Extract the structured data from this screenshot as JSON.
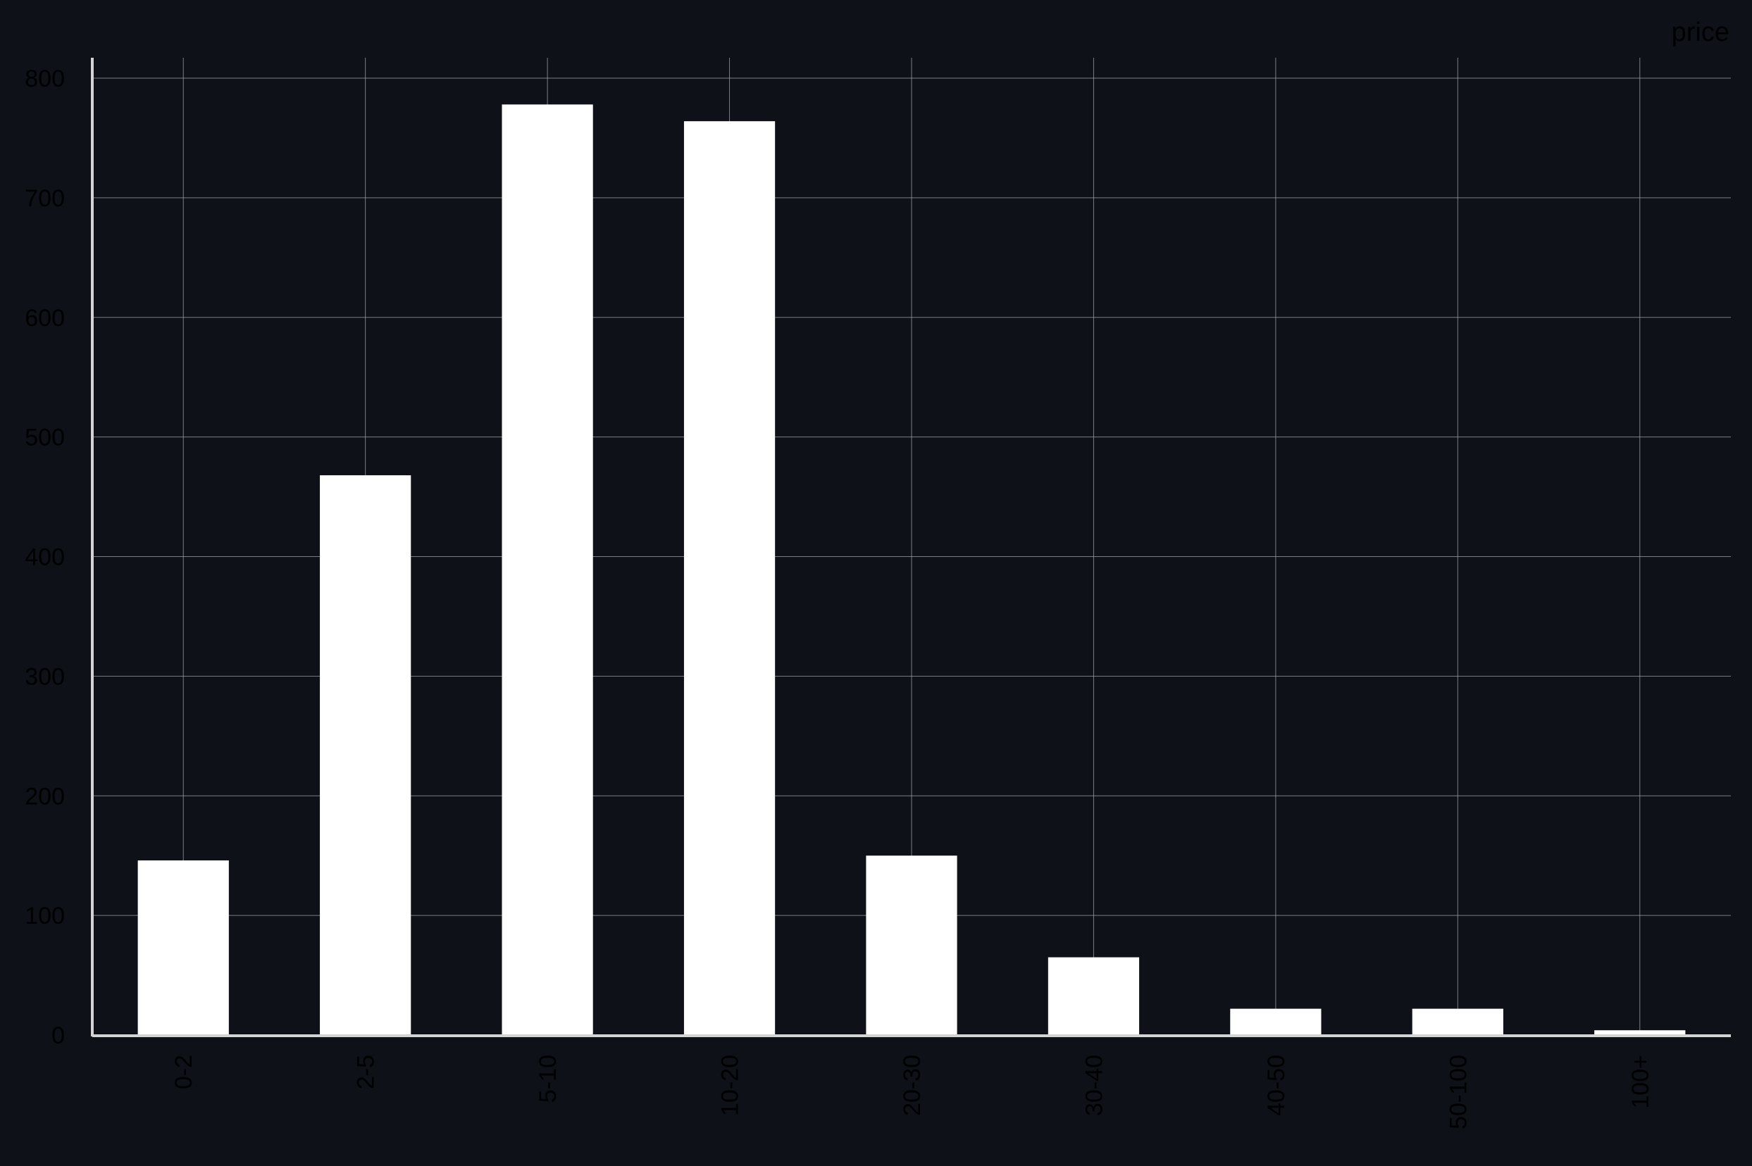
{
  "chart_data": {
    "type": "bar",
    "categories": [
      "0-2",
      "2-5",
      "5-10",
      "10-20",
      "20-30",
      "30-40",
      "40-50",
      "50-100",
      "100+"
    ],
    "series": [
      {
        "name": "price",
        "values": [
          146,
          468,
          778,
          764,
          150,
          65,
          22,
          22,
          4
        ]
      }
    ],
    "title": "",
    "xlabel": "",
    "ylabel": "",
    "ylim": [
      0,
      800
    ],
    "yticks": [
      0,
      100,
      200,
      300,
      400,
      500,
      600,
      700,
      800
    ],
    "grid": true,
    "legend_position": "top-right",
    "x_tick_rotation": "vertical"
  },
  "colors": {
    "background": "#0e1117",
    "bar": "#ffffff",
    "grid": "#a0a3a8",
    "axis": "#d4d4d4",
    "text": "#000000"
  }
}
